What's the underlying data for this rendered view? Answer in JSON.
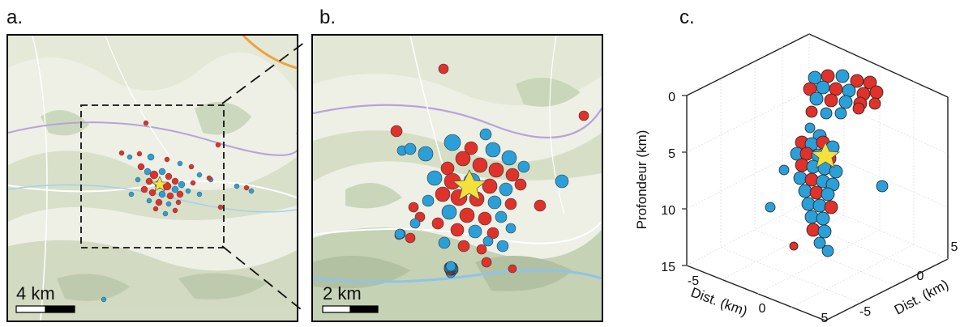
{
  "panels": {
    "a": {
      "label": "a.",
      "scale_text": "4 km"
    },
    "b": {
      "label": "b.",
      "scale_text": "2 km"
    },
    "c": {
      "label": "c.",
      "z_axis_label": "Profondeur (km)",
      "z_ticks": [
        "0",
        "5",
        "10",
        "15"
      ],
      "x_axis_label": "Dist. (km)",
      "x_ticks": [
        "-5",
        "0",
        "5"
      ],
      "y_axis_label": "Dist. (km)",
      "y_ticks": [
        "-5",
        "0",
        "5"
      ]
    }
  },
  "colors": {
    "red_events": "#e0312b",
    "blue_events": "#2b9fd8",
    "star": "#f5e13a",
    "map_bg": "#eef0e6"
  }
}
